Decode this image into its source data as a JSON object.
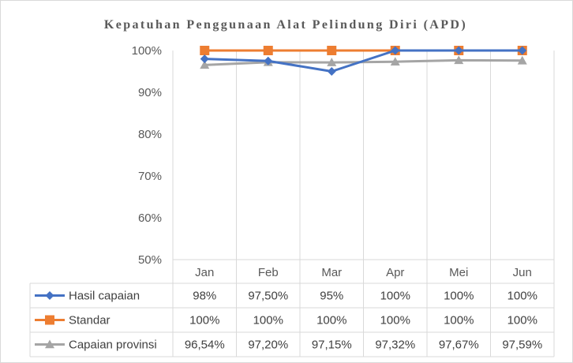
{
  "chart_data": {
    "type": "line",
    "title": "Kepatuhan Penggunaan Alat Pelindung Diri (APD)",
    "categories": [
      "Jan",
      "Feb",
      "Mar",
      "Apr",
      "Mei",
      "Jun"
    ],
    "ylim": [
      50,
      100
    ],
    "yticks": [
      50,
      60,
      70,
      80,
      90,
      100
    ],
    "ytick_labels": [
      "50%",
      "60%",
      "70%",
      "80%",
      "90%",
      "100%"
    ],
    "grid": "vertical",
    "legend": "data-table",
    "series": [
      {
        "name": "Hasil capaian",
        "color": "#4472c4",
        "marker": "diamond",
        "values": [
          98,
          97.5,
          95,
          100,
          100,
          100
        ],
        "labels": [
          "98%",
          "97,50%",
          "95%",
          "100%",
          "100%",
          "100%"
        ]
      },
      {
        "name": "Standar",
        "color": "#ed7d31",
        "marker": "square",
        "values": [
          100,
          100,
          100,
          100,
          100,
          100
        ],
        "labels": [
          "100%",
          "100%",
          "100%",
          "100%",
          "100%",
          "100%"
        ]
      },
      {
        "name": "Capaian provinsi",
        "color": "#a5a5a5",
        "marker": "triangle",
        "values": [
          96.54,
          97.2,
          97.15,
          97.32,
          97.67,
          97.59
        ],
        "labels": [
          "96,54%",
          "97,20%",
          "97,15%",
          "97,32%",
          "97,67%",
          "97,59%"
        ]
      }
    ]
  }
}
